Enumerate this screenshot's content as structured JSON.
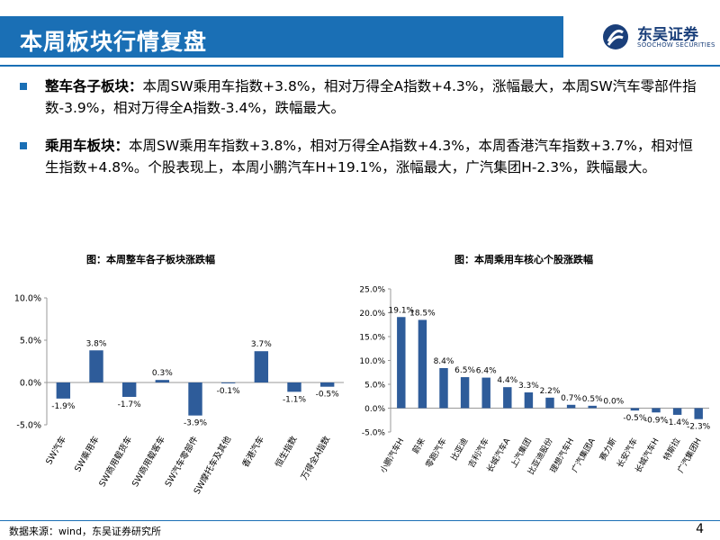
{
  "header": {
    "title": "本周板块行情复盘",
    "logo_cn": "东吴证券",
    "logo_en": "SOOCHOW SECURITIES"
  },
  "bullets": [
    {
      "label": "整车各子板块：",
      "text": "本周SW乘用车指数+3.8%，相对万得全A指数+4.3%，涨幅最大，本周SW汽车零部件指数-3.9%，相对万得全A指数-3.4%，跌幅最大。"
    },
    {
      "label": "乘用车板块：",
      "text": "本周SW乘用车指数+3.8%，相对万得全A指数+4.3%，本周香港汽车指数+3.7%，相对恒生指数+4.8%。个股表现上，本周小鹏汽车H+19.1%，涨幅最大，广汽集团H-2.3%，跌幅最大。"
    }
  ],
  "chart_data": [
    {
      "type": "bar",
      "title": "图：本周整车各子板块涨跌幅",
      "categories": [
        "SW汽车",
        "SW乘用车",
        "SW商用载货车",
        "SW商用载客车",
        "SW汽车零部件",
        "SW摩托车及其他",
        "香港汽车",
        "恒生指数",
        "万得全A指数"
      ],
      "values": [
        -1.9,
        3.8,
        -1.7,
        0.3,
        -3.9,
        -0.1,
        3.7,
        -1.1,
        -0.5
      ],
      "labels": [
        "-1.9%",
        "3.8%",
        "-1.7%",
        "0.3%",
        "-3.9%",
        "-0.1%",
        "3.7%",
        "-1.1%",
        "-0.5%"
      ],
      "ylim": [
        -5,
        10
      ],
      "yticks": [
        "10.0%",
        "5.0%",
        "0.0%",
        "-5.0%"
      ],
      "ytick_values": [
        10,
        5,
        0,
        -5
      ],
      "color": "#2e5c9a"
    },
    {
      "type": "bar",
      "title": "图：本周乘用车核心个股涨跌幅",
      "categories": [
        "小鹏汽车H",
        "蔚来",
        "零跑汽车",
        "比亚迪",
        "吉利汽车",
        "长城汽车A",
        "上汽集团",
        "比亚迪股份",
        "理想汽车H",
        "广汽集团A",
        "赛力斯",
        "长安汽车",
        "长城汽车H",
        "特斯拉",
        "广汽集团H"
      ],
      "values": [
        19.1,
        18.5,
        8.4,
        6.5,
        6.4,
        4.4,
        3.3,
        2.2,
        0.7,
        0.5,
        0.0,
        -0.5,
        -0.9,
        -1.4,
        -2.3
      ],
      "labels": [
        "19.1%",
        "18.5%",
        "8.4%",
        "6.5%",
        "6.4%",
        "4.4%",
        "3.3%",
        "2.2%",
        "0.7%",
        "0.5%",
        "0.0%",
        "-0.5%",
        "-0.9%",
        "-1.4%",
        "-2.3%"
      ],
      "ylim": [
        -5,
        25
      ],
      "yticks": [
        "25.0%",
        "20.0%",
        "15.0%",
        "10.0%",
        "5.0%",
        "0.0%",
        "-5.0%"
      ],
      "ytick_values": [
        25,
        20,
        15,
        10,
        5,
        0,
        -5
      ],
      "color": "#2e5c9a"
    }
  ],
  "footer": {
    "source": "数据来源：wind，东吴证券研究所",
    "page": "4"
  }
}
